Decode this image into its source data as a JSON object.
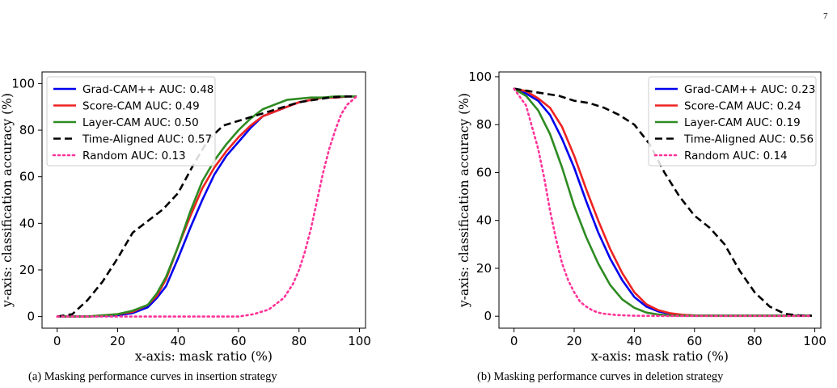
{
  "page_number": "7",
  "chart_data": [
    {
      "type": "line",
      "caption": "(a) Masking performance curves in insertion strategy",
      "xlabel": "x-axis: mask ratio (%)",
      "ylabel": "y-axis: classification accuracy (%)",
      "xlim": [
        -5,
        102
      ],
      "ylim": [
        -5,
        105
      ],
      "xticks": [
        0,
        20,
        40,
        60,
        80,
        100
      ],
      "yticks": [
        0,
        20,
        40,
        60,
        80,
        100
      ],
      "legend_position": "top-left",
      "grid": false,
      "series": [
        {
          "name": "Grad-CAM++ AUC: 0.48",
          "color": "#0000ee",
          "dash": "solid",
          "x": [
            0,
            10,
            20,
            25,
            30,
            33,
            36,
            40,
            44,
            48,
            52,
            56,
            60,
            64,
            68,
            72,
            76,
            80,
            84,
            88,
            92,
            96,
            99
          ],
          "y": [
            0,
            0,
            0.5,
            1.5,
            4,
            8,
            13,
            25,
            38,
            50,
            61,
            69,
            75,
            81,
            86,
            88,
            90,
            92,
            93,
            94,
            94,
            94.5,
            94.5
          ]
        },
        {
          "name": "Score-CAM AUC: 0.49",
          "color": "#ee2222",
          "dash": "solid",
          "x": [
            0,
            10,
            20,
            25,
            30,
            33,
            36,
            40,
            44,
            48,
            52,
            56,
            60,
            64,
            68,
            72,
            76,
            80,
            84,
            88,
            92,
            96,
            99
          ],
          "y": [
            0,
            0,
            1,
            2,
            5,
            9,
            16,
            30,
            43,
            55,
            64,
            71,
            77,
            82,
            86,
            88,
            90,
            92,
            93,
            94,
            94,
            94.5,
            94.5
          ]
        },
        {
          "name": "Layer-CAM AUC: 0.50",
          "color": "#2e8b22",
          "dash": "solid",
          "x": [
            0,
            10,
            20,
            25,
            30,
            33,
            36,
            40,
            44,
            48,
            52,
            56,
            60,
            64,
            68,
            72,
            76,
            80,
            84,
            88,
            92,
            96,
            99
          ],
          "y": [
            0,
            0,
            1,
            2.5,
            5,
            10,
            17,
            30,
            45,
            58,
            67,
            74,
            80,
            85,
            89,
            91,
            93,
            93.5,
            94,
            94,
            94.5,
            94.5,
            94.5
          ]
        },
        {
          "name": "Time-Aligned AUC: 0.57",
          "color": "#000000",
          "dash": "dashed",
          "x": [
            0,
            5,
            10,
            15,
            20,
            25,
            30,
            35,
            40,
            45,
            50,
            55,
            60,
            65,
            70,
            75,
            80,
            85,
            90,
            95,
            99
          ],
          "y": [
            0,
            1,
            7,
            15,
            25,
            36,
            41,
            46,
            53,
            65,
            76,
            82,
            84,
            86,
            88,
            90,
            92,
            93,
            94,
            94.5,
            94.5
          ]
        },
        {
          "name": "Random AUC: 0.13",
          "color": "#ff3399",
          "dash": "dotted",
          "x": [
            0,
            30,
            50,
            60,
            65,
            70,
            75,
            78,
            80,
            82,
            84,
            86,
            88,
            90,
            92,
            94,
            96,
            99
          ],
          "y": [
            0,
            0,
            0,
            0,
            1,
            3,
            8,
            14,
            20,
            28,
            38,
            50,
            62,
            72,
            80,
            87,
            91,
            94.5
          ]
        }
      ]
    },
    {
      "type": "line",
      "caption": "(b) Masking performance curves in deletion strategy",
      "xlabel": "x-axis: mask ratio (%)",
      "ylabel": "y-axis: classification accuracy (%)",
      "xlim": [
        -5,
        102
      ],
      "ylim": [
        -5,
        102
      ],
      "xticks": [
        0,
        20,
        40,
        60,
        80,
        100
      ],
      "yticks": [
        0,
        20,
        40,
        60,
        80,
        100
      ],
      "legend_position": "top-right",
      "grid": false,
      "series": [
        {
          "name": "Grad-CAM++ AUC: 0.23",
          "color": "#0000ee",
          "dash": "solid",
          "x": [
            0,
            4,
            8,
            12,
            16,
            20,
            24,
            28,
            32,
            36,
            40,
            44,
            48,
            52,
            56,
            60,
            70,
            80,
            99
          ],
          "y": [
            95,
            93,
            90,
            84,
            74,
            62,
            48,
            35,
            24,
            15,
            8,
            4,
            2,
            1,
            0.5,
            0.3,
            0.2,
            0.2,
            0.2
          ]
        },
        {
          "name": "Score-CAM AUC: 0.24",
          "color": "#ee2222",
          "dash": "solid",
          "x": [
            0,
            4,
            8,
            12,
            16,
            20,
            24,
            28,
            32,
            36,
            40,
            44,
            48,
            52,
            56,
            60,
            70,
            80,
            99
          ],
          "y": [
            95,
            94,
            91,
            87,
            79,
            67,
            53,
            40,
            28,
            18,
            10,
            5,
            2.5,
            1.2,
            0.6,
            0.3,
            0.2,
            0.2,
            0.2
          ]
        },
        {
          "name": "Layer-CAM AUC: 0.19",
          "color": "#2e8b22",
          "dash": "solid",
          "x": [
            0,
            4,
            8,
            12,
            16,
            20,
            24,
            28,
            32,
            36,
            40,
            44,
            48,
            52,
            56,
            60,
            70,
            80,
            99
          ],
          "y": [
            95,
            92,
            86,
            76,
            62,
            46,
            33,
            22,
            13,
            7,
            3.5,
            1.5,
            0.7,
            0.3,
            0.2,
            0.2,
            0.2,
            0.2,
            0.2
          ]
        },
        {
          "name": "Time-Aligned AUC: 0.56",
          "color": "#000000",
          "dash": "dashed",
          "x": [
            0,
            5,
            10,
            15,
            20,
            25,
            30,
            35,
            40,
            45,
            50,
            55,
            60,
            65,
            70,
            75,
            80,
            85,
            90,
            95,
            99
          ],
          "y": [
            95,
            94,
            93,
            92,
            90,
            89,
            87,
            84,
            80,
            72,
            60,
            50,
            42,
            37,
            30,
            19,
            10,
            4,
            1,
            0.3,
            0.2
          ]
        },
        {
          "name": "Random AUC: 0.14",
          "color": "#ff3399",
          "dash": "dotted",
          "x": [
            0,
            4,
            8,
            10,
            12,
            14,
            16,
            18,
            20,
            22,
            24,
            26,
            28,
            30,
            34,
            40,
            50,
            60,
            70,
            99
          ],
          "y": [
            95,
            88,
            70,
            58,
            44,
            32,
            22,
            15,
            10,
            6,
            4,
            2.5,
            1.5,
            1,
            0.5,
            0.2,
            0.1,
            0.1,
            0.1,
            0.1
          ]
        }
      ]
    }
  ]
}
